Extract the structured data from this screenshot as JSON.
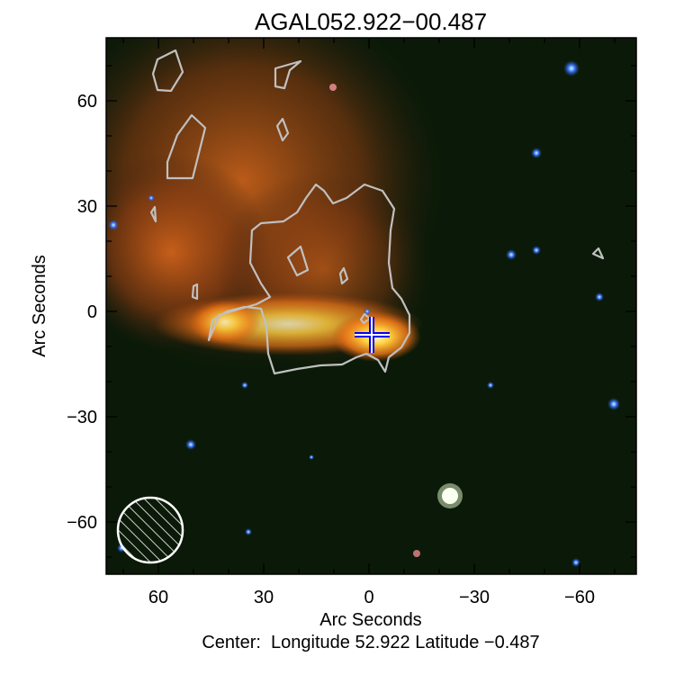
{
  "chart_data": {
    "type": "image",
    "title": "AGAL052.922−00.487",
    "xlabel": "Arc Seconds",
    "ylabel": "Arc Seconds",
    "caption": "Center:  Longitude 52.922 Latitude −0.487",
    "xlim": [
      75,
      -76
    ],
    "ylim": [
      -75,
      78
    ],
    "xticks": [
      60,
      30,
      0,
      -30,
      -60
    ],
    "yticks": [
      60,
      30,
      0,
      -30,
      -60
    ],
    "xtick_labels": [
      "60",
      "30",
      "0",
      "−30",
      "−60"
    ],
    "ytick_labels": [
      "60",
      "30",
      "0",
      "−30",
      "−60"
    ],
    "grid": false,
    "marker": {
      "type": "cross",
      "x": -1,
      "y": -7,
      "color": "#0000ff"
    },
    "beam": {
      "x": 62,
      "y": -63,
      "hatched": true,
      "color": "#ffffff"
    },
    "contour_color": "#c0c0c0",
    "colors": {
      "background": "#0b1a08",
      "nebula": "#e0701a",
      "core": "#fff2a0"
    }
  }
}
